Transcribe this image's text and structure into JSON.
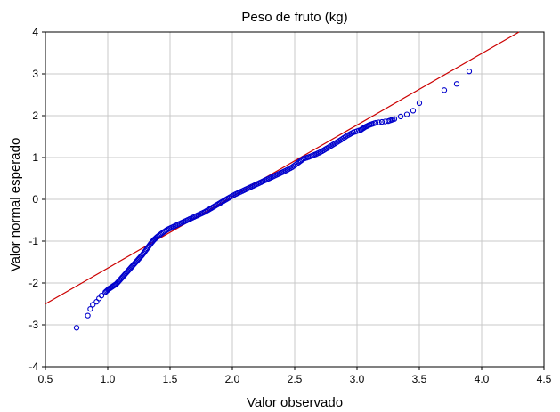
{
  "chart_data": {
    "type": "scatter",
    "title": "Peso de fruto (kg)",
    "xlabel": "Valor observado",
    "ylabel": "Valor normal esperado",
    "xlim": [
      0.5,
      4.5
    ],
    "ylim": [
      -4,
      4
    ],
    "xticks": [
      "0.5",
      "1.0",
      "1.5",
      "2.0",
      "2.5",
      "3.0",
      "3.5",
      "4.0",
      "4.5"
    ],
    "yticks": [
      "4",
      "3",
      "2",
      "1",
      "0",
      "-1",
      "-2",
      "-3",
      "-4"
    ],
    "grid": true,
    "reference_line": {
      "x": [
        0.5,
        4.3
      ],
      "y": [
        -2.5,
        4.0
      ],
      "color": "#cc0000"
    },
    "marker_color": "#0000cc",
    "points": [
      [
        0.75,
        -3.07
      ],
      [
        0.84,
        -2.78
      ],
      [
        0.86,
        -2.62
      ],
      [
        0.88,
        -2.52
      ],
      [
        0.91,
        -2.45
      ],
      [
        0.93,
        -2.37
      ],
      [
        0.95,
        -2.3
      ],
      [
        0.98,
        -2.22
      ],
      [
        1.01,
        -2.14
      ],
      [
        1.04,
        -2.08
      ],
      [
        1.07,
        -2.02
      ],
      [
        1.1,
        -1.92
      ],
      [
        1.13,
        -1.82
      ],
      [
        1.16,
        -1.72
      ],
      [
        1.19,
        -1.62
      ],
      [
        1.22,
        -1.52
      ],
      [
        1.25,
        -1.42
      ],
      [
        1.28,
        -1.32
      ],
      [
        1.31,
        -1.2
      ],
      [
        1.34,
        -1.08
      ],
      [
        1.37,
        -0.97
      ],
      [
        1.4,
        -0.89
      ],
      [
        1.44,
        -0.8
      ],
      [
        1.48,
        -0.72
      ],
      [
        1.53,
        -0.65
      ],
      [
        1.58,
        -0.58
      ],
      [
        1.63,
        -0.51
      ],
      [
        1.68,
        -0.44
      ],
      [
        1.73,
        -0.37
      ],
      [
        1.78,
        -0.3
      ],
      [
        1.82,
        -0.23
      ],
      [
        1.86,
        -0.16
      ],
      [
        1.9,
        -0.09
      ],
      [
        1.94,
        -0.02
      ],
      [
        1.98,
        0.05
      ],
      [
        2.03,
        0.13
      ],
      [
        2.08,
        0.2
      ],
      [
        2.13,
        0.27
      ],
      [
        2.18,
        0.34
      ],
      [
        2.23,
        0.41
      ],
      [
        2.28,
        0.48
      ],
      [
        2.33,
        0.55
      ],
      [
        2.38,
        0.62
      ],
      [
        2.43,
        0.69
      ],
      [
        2.48,
        0.77
      ],
      [
        2.53,
        0.88
      ],
      [
        2.57,
        0.97
      ],
      [
        2.62,
        1.02
      ],
      [
        2.67,
        1.08
      ],
      [
        2.72,
        1.15
      ],
      [
        2.77,
        1.24
      ],
      [
        2.82,
        1.33
      ],
      [
        2.87,
        1.42
      ],
      [
        2.92,
        1.52
      ],
      [
        2.97,
        1.6
      ],
      [
        3.03,
        1.66
      ],
      [
        3.06,
        1.72
      ],
      [
        3.1,
        1.78
      ],
      [
        3.15,
        1.83
      ],
      [
        3.25,
        1.87
      ],
      [
        3.3,
        1.92
      ],
      [
        3.35,
        1.98
      ],
      [
        3.4,
        2.03
      ],
      [
        3.45,
        2.12
      ],
      [
        3.5,
        2.3
      ],
      [
        3.7,
        2.61
      ],
      [
        3.8,
        2.76
      ],
      [
        3.9,
        3.06
      ]
    ]
  }
}
